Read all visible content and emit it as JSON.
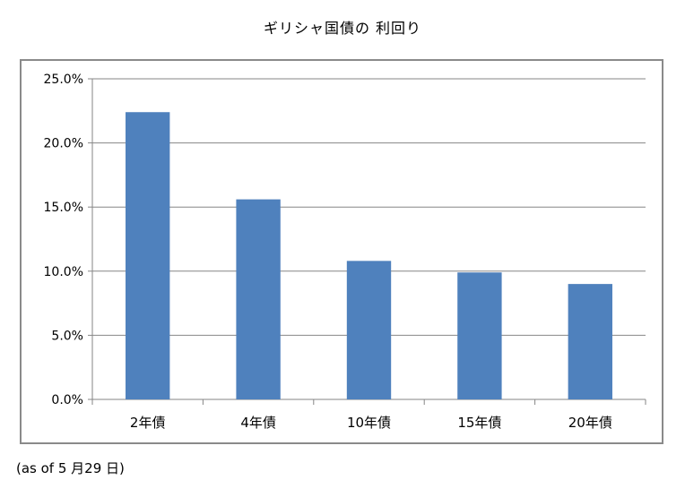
{
  "chart_data": {
    "type": "bar",
    "title": "ギリシャ国債の 利回り",
    "categories": [
      "2年債",
      "4年債",
      "10年債",
      "15年債",
      "20年債"
    ],
    "values": [
      22.4,
      15.6,
      10.8,
      9.9,
      9.0
    ],
    "unit": "%",
    "ylim": [
      0,
      25
    ],
    "yticks": [
      "0.0%",
      "5.0%",
      "10.0%",
      "15.0%",
      "20.0%",
      "25.0%"
    ],
    "grid": true,
    "legend": "none",
    "bar_color": "#4f81bd",
    "grid_color": "#868686"
  },
  "footnote": "(as of 5 月29 日)"
}
